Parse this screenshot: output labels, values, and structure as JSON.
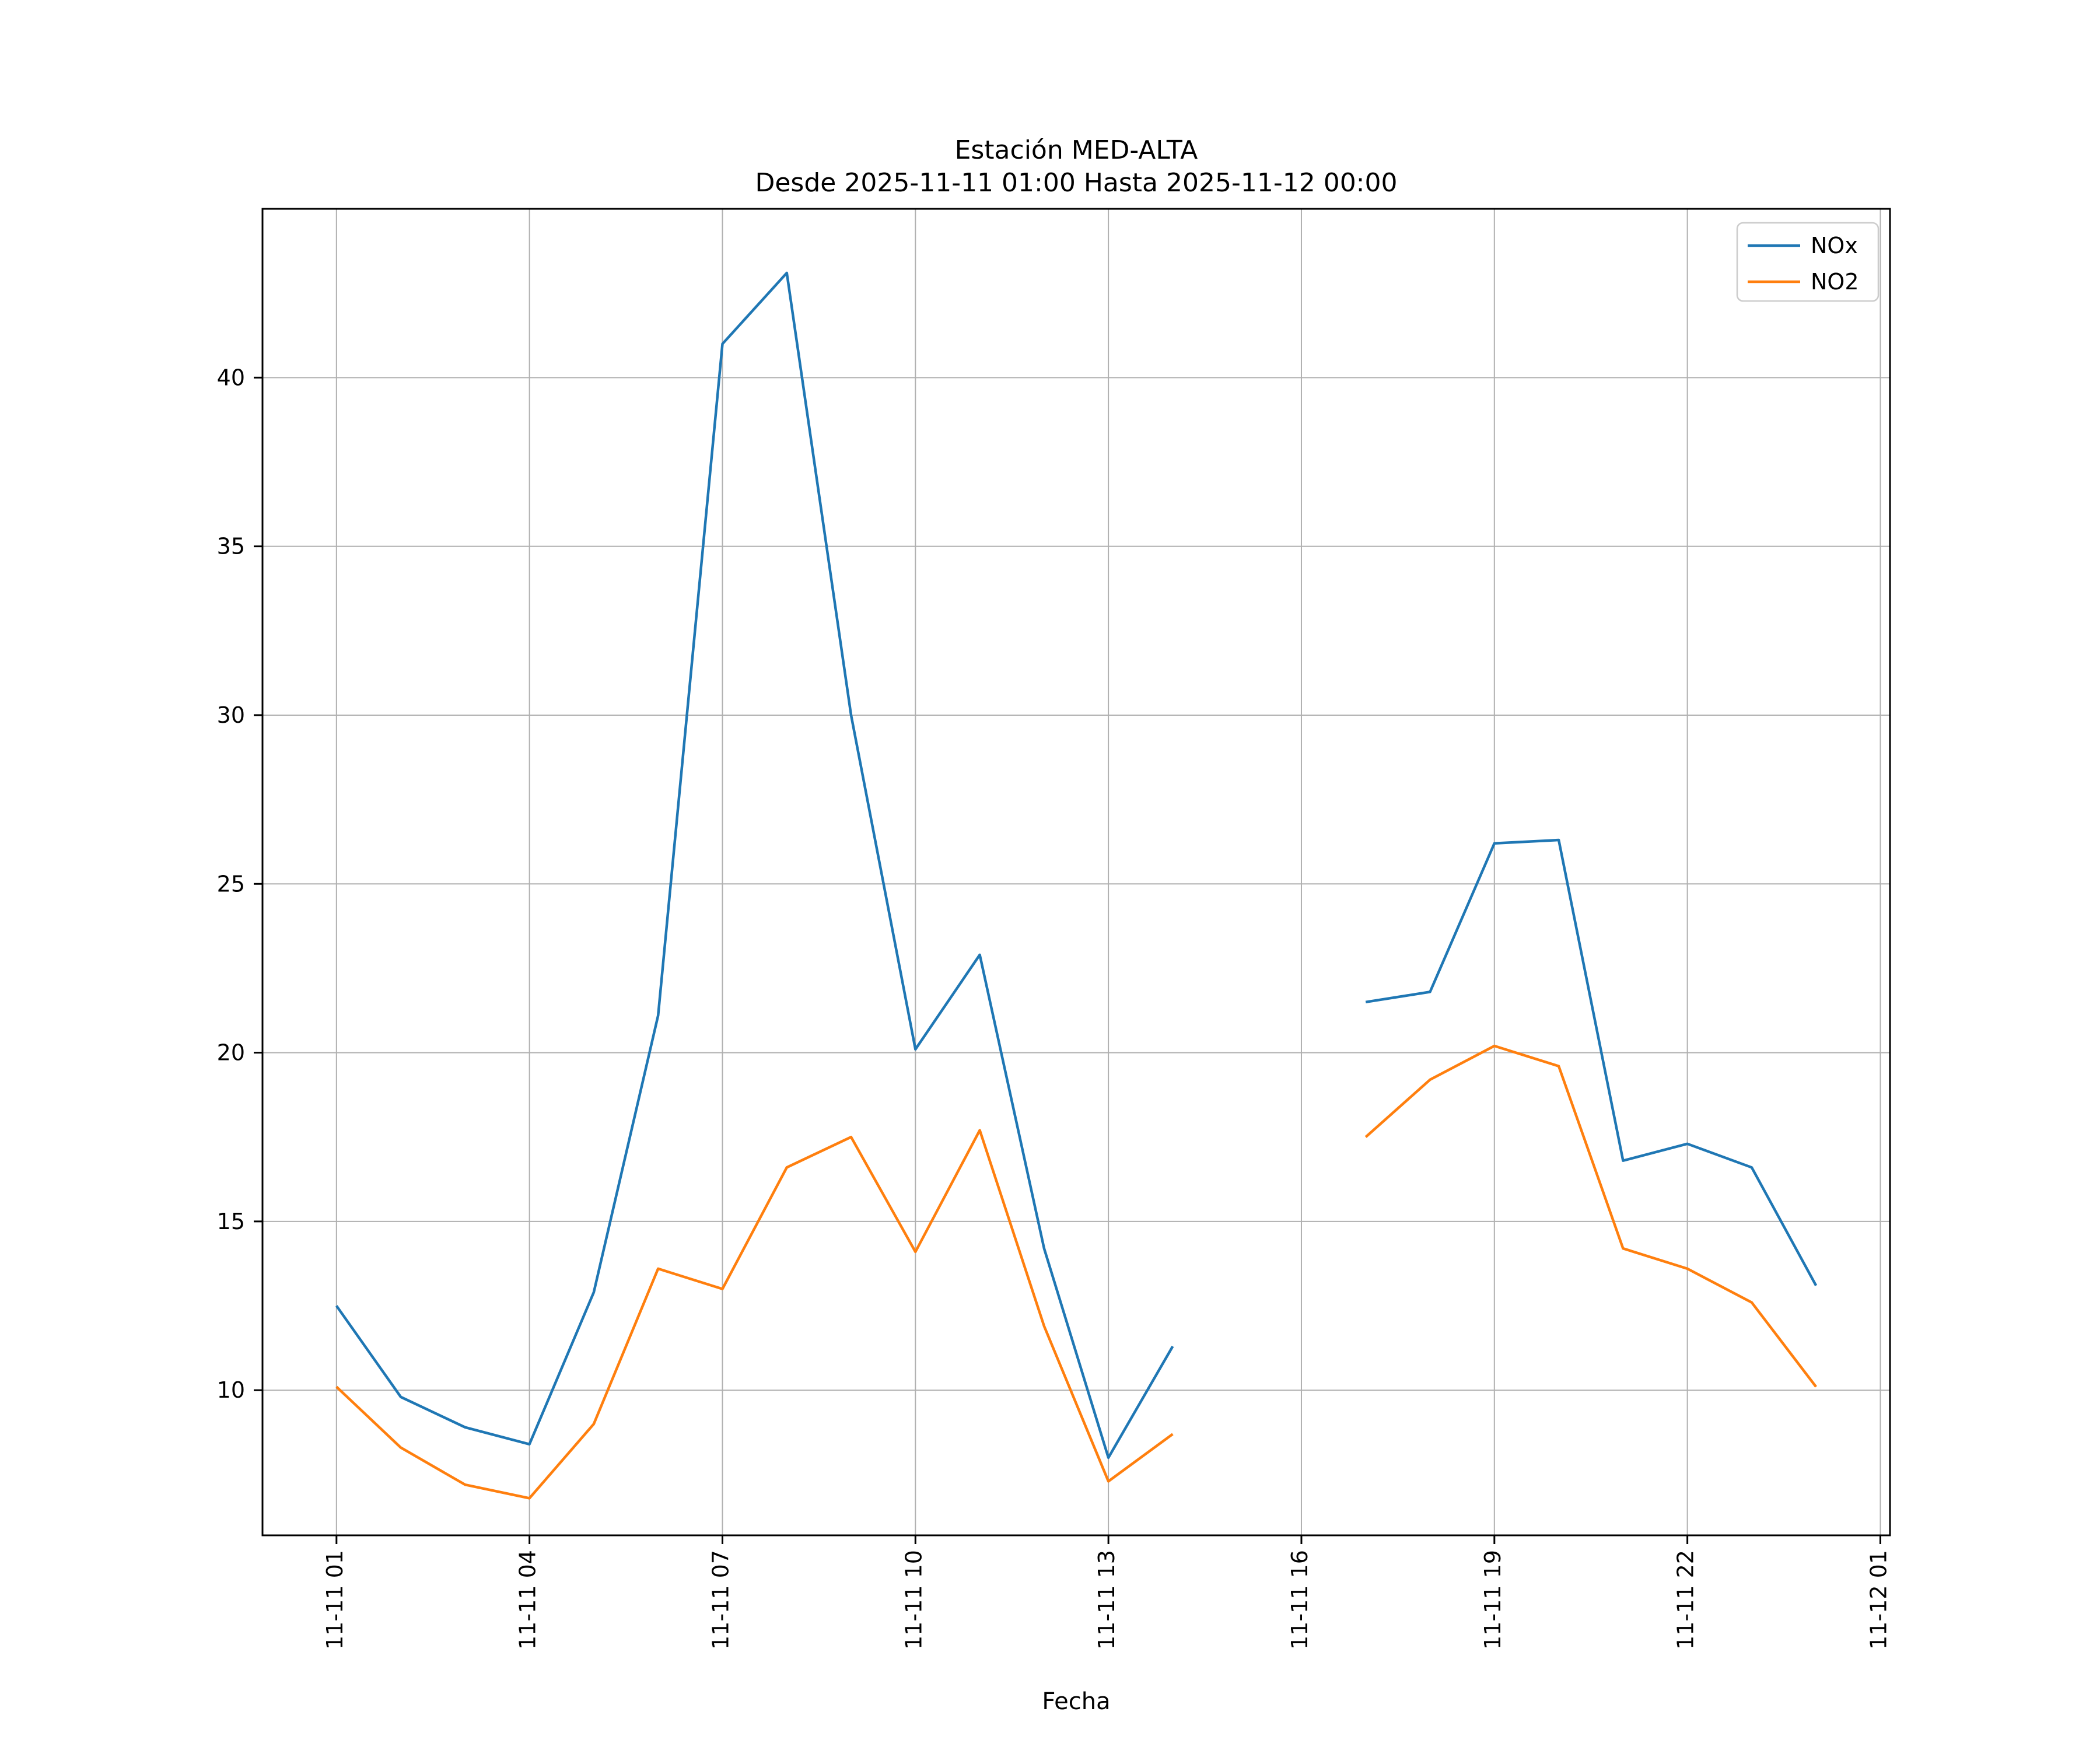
{
  "title": "Estación MED-ALTA",
  "subtitle": "Desde 2025-11-11 01:00 Hasta 2025-11-12 00:00",
  "xlabel": "Fecha",
  "legend": [
    {
      "label": "NOx",
      "color": "#1f77b4"
    },
    {
      "label": "NO2",
      "color": "#ff7f0e"
    }
  ],
  "colors": {
    "nox": "#1f77b4",
    "no2": "#ff7f0e",
    "gridline": "#b0b0b0",
    "spine": "#000000",
    "text": "#000000",
    "background": "#ffffff"
  },
  "chart_data": {
    "type": "line",
    "title": "Estación MED-ALTA",
    "subtitle": "Desde 2025-11-11 01:00 Hasta 2025-11-12 00:00",
    "xlabel": "Fecha",
    "ylabel": "",
    "grid": true,
    "legend_position": "upper right",
    "hours": [
      1,
      2,
      3,
      4,
      5,
      6,
      7,
      8,
      9,
      10,
      11,
      12,
      13,
      14,
      15,
      16,
      17,
      18,
      19,
      20,
      21,
      22,
      23,
      24
    ],
    "series": [
      {
        "name": "NOx",
        "color": "#1f77b4",
        "values": [
          12.5,
          9.8,
          8.9,
          8.4,
          12.9,
          21.1,
          41.0,
          43.1,
          30.0,
          20.1,
          22.9,
          14.2,
          8.0,
          11.3,
          null,
          null,
          21.5,
          21.8,
          26.2,
          26.3,
          16.8,
          17.3,
          16.6,
          13.1
        ]
      },
      {
        "name": "NO2",
        "color": "#ff7f0e",
        "values": [
          10.1,
          8.3,
          7.2,
          6.8,
          9.0,
          13.6,
          13.0,
          16.6,
          17.5,
          14.1,
          17.7,
          11.9,
          7.3,
          8.7,
          null,
          null,
          17.5,
          19.2,
          20.2,
          19.6,
          14.2,
          13.6,
          12.6,
          10.1
        ]
      }
    ],
    "x_tick_hours": [
      1,
      4,
      7,
      10,
      13,
      16,
      19,
      22,
      25
    ],
    "x_tick_labels": [
      "11-11 01",
      "11-11 04",
      "11-11 07",
      "11-11 10",
      "11-11 13",
      "11-11 16",
      "11-11 19",
      "11-11 22",
      "11-12 01"
    ],
    "y_ticks": [
      10,
      15,
      20,
      25,
      30,
      35,
      40
    ],
    "ylim": [
      5.7,
      45.0
    ],
    "xlim_hours": [
      -0.15,
      25.15
    ]
  }
}
